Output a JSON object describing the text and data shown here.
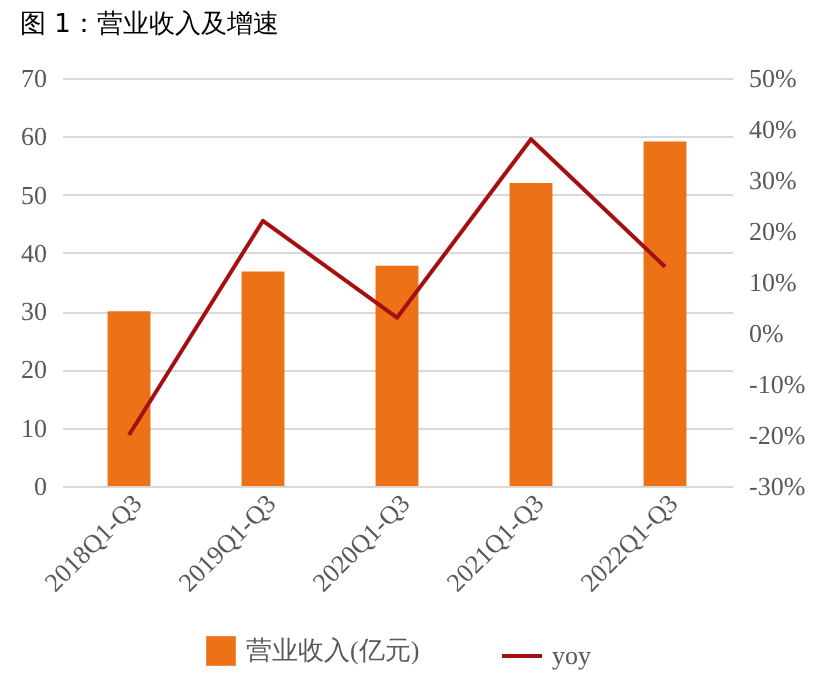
{
  "chart_data": {
    "type": "bar",
    "title": "图 1：营业收入及增速",
    "categories": [
      "2018Q1-Q3",
      "2019Q1-Q3",
      "2020Q1-Q3",
      "2021Q1-Q3",
      "2022Q1-Q3"
    ],
    "series": [
      {
        "name": "营业收入(亿元)",
        "color": "#ed7117",
        "values": [
          30,
          36.8,
          37.8,
          52,
          59.1
        ]
      },
      {
        "name": "yoy",
        "type": "line",
        "axis": "y2",
        "color": "#a50f0f",
        "values": [
          -20,
          22,
          3,
          38,
          13
        ]
      }
    ],
    "ylim": [
      0,
      70
    ],
    "yticks": [
      0,
      10,
      20,
      30,
      40,
      50,
      60,
      70
    ],
    "y2lim": [
      -30,
      50
    ],
    "y2ticks": [
      {
        "value": -30,
        "label": "-30%"
      },
      {
        "value": -20,
        "label": "-20%"
      },
      {
        "value": -10,
        "label": "-10%"
      },
      {
        "value": 0,
        "label": "0%"
      },
      {
        "value": 10,
        "label": "10%"
      },
      {
        "value": 20,
        "label": "20%"
      },
      {
        "value": 30,
        "label": "30%"
      },
      {
        "value": 40,
        "label": "40%"
      },
      {
        "value": 50,
        "label": "50%"
      }
    ],
    "grid": "y",
    "legend": "bottom"
  }
}
